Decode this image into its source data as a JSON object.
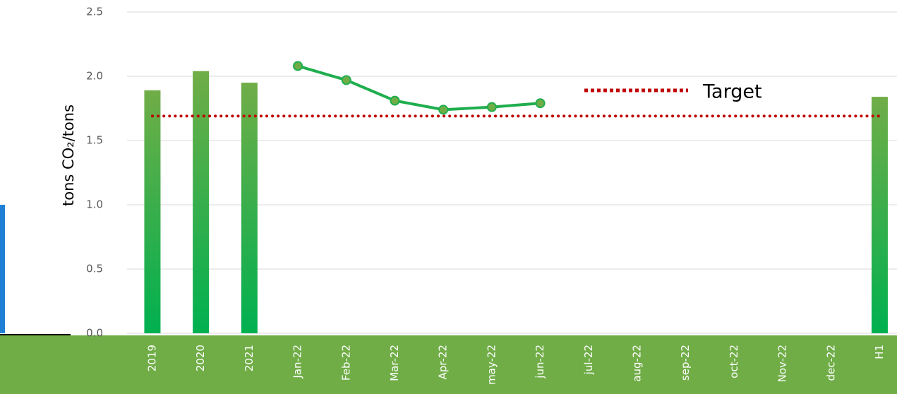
{
  "chart_data": {
    "type": "bar",
    "y_label": "tons CO₂/tons",
    "categories": [
      "2019",
      "2020",
      "2021",
      "Jan-22",
      "Feb-22",
      "Mar-22",
      "Apr-22",
      "may-22",
      "jun-22",
      "jul-22",
      "aug-22",
      "sep-22",
      "oct-22",
      "Nov-22",
      "dec-22",
      "H1"
    ],
    "series": [
      {
        "type": "bar",
        "color": "#3cb04c",
        "values": [
          1.89,
          2.04,
          1.95,
          null,
          null,
          null,
          null,
          null,
          null,
          null,
          null,
          null,
          null,
          null,
          null,
          1.84
        ]
      },
      {
        "type": "line",
        "color": "#1fae4e",
        "values": [
          null,
          null,
          null,
          2.08,
          1.97,
          1.81,
          1.74,
          1.76,
          1.79,
          null,
          null,
          null,
          null,
          null,
          null,
          null
        ]
      }
    ],
    "target": {
      "name": "Target",
      "value": 1.69,
      "color": "#c00000"
    },
    "ylim": [
      0,
      2.5
    ],
    "yticks": [
      {
        "value": 0,
        "label": "0.0"
      },
      {
        "value": 0.5,
        "label": "0.5"
      },
      {
        "value": 1,
        "label": "1.0"
      },
      {
        "value": 1.5,
        "label": "1.5"
      },
      {
        "value": 2,
        "label": "2.0"
      },
      {
        "value": 2.5,
        "label": "2.5"
      }
    ],
    "grid": true
  }
}
